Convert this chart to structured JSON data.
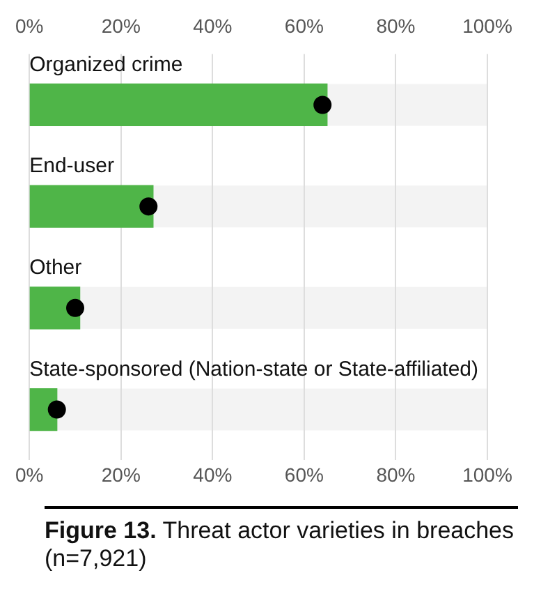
{
  "chart_data": {
    "type": "bar",
    "orientation": "horizontal",
    "title": "Figure 13. Threat actor varieties in breaches (n=7,921)",
    "categories": [
      "Organized crime",
      "End-user",
      "Other",
      "State-sponsored (Nation-state or State-affiliated)"
    ],
    "series": [
      {
        "color": "#4fb548",
        "values": [
          65,
          27,
          11,
          6
        ]
      },
      {
        "type": "scatter",
        "color": "#000000",
        "marker": "circle",
        "values": [
          64,
          26,
          10,
          6
        ]
      }
    ],
    "xlim": [
      0,
      100
    ],
    "xticks": [
      {
        "value": 0,
        "label": "0%"
      },
      {
        "value": 20,
        "label": "20%"
      },
      {
        "value": 40,
        "label": "40%"
      },
      {
        "value": 60,
        "label": "60%"
      },
      {
        "value": 80,
        "label": "80%"
      },
      {
        "value": 100,
        "label": "100%"
      }
    ],
    "x2lim": [
      0,
      100
    ],
    "x2ticks": [
      {
        "value": 0,
        "label": "0%"
      },
      {
        "value": 20,
        "label": "20%"
      },
      {
        "value": 40,
        "label": "40%"
      },
      {
        "value": 60,
        "label": "60%"
      },
      {
        "value": 80,
        "label": "80%"
      },
      {
        "value": 100,
        "label": "100%"
      }
    ],
    "grid": "x",
    "legend": false
  }
}
